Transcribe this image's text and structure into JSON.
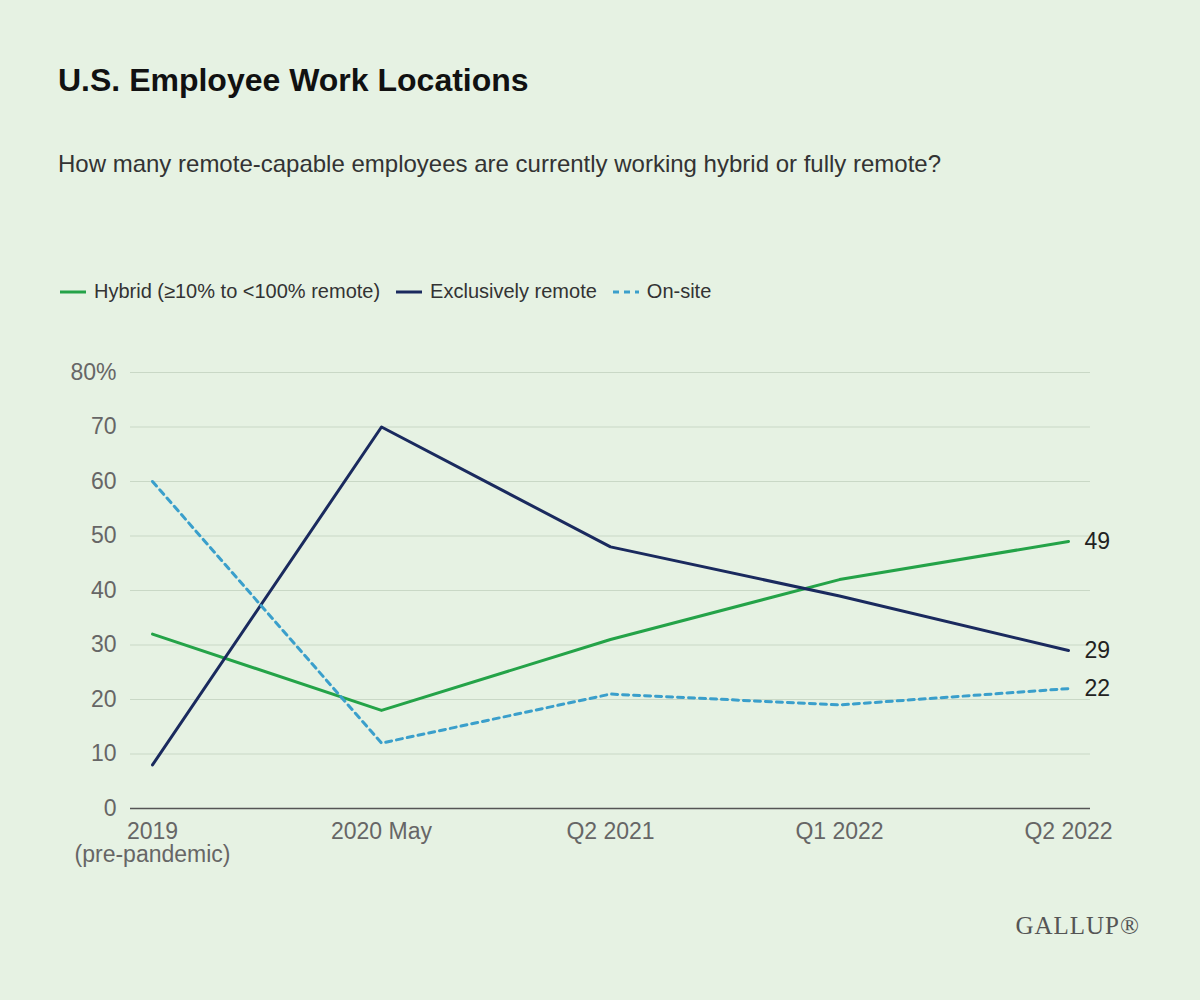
{
  "chart_data": {
    "type": "line",
    "title": "U.S. Employee Work Locations",
    "subtitle": "How many remote-capable employees are currently working hybrid or fully remote?",
    "source": "GALLUP®",
    "categories": [
      "2019\n(pre-pandemic)",
      "2020 May",
      "Q2 2021",
      "Q1 2022",
      "Q2 2022"
    ],
    "series": [
      {
        "name": "Hybrid (≥10% to <100% remote)",
        "color": "#24a348",
        "line_style": "solid",
        "values": [
          32,
          18,
          31,
          42,
          49
        ]
      },
      {
        "name": "Exclusively remote",
        "color": "#1a2a5e",
        "line_style": "solid",
        "values": [
          8,
          70,
          48,
          39,
          29
        ]
      },
      {
        "name": "On-site",
        "color": "#3a9fcb",
        "line_style": "dashed",
        "values": [
          60,
          12,
          21,
          19,
          22
        ]
      }
    ],
    "annotations": [
      {
        "x": "Q2 2022",
        "y": 49,
        "text": "49"
      },
      {
        "x": "Q2 2022",
        "y": 29,
        "text": "29"
      },
      {
        "x": "Q2 2022",
        "y": 22,
        "text": "22"
      }
    ],
    "ylim": [
      0,
      80
    ],
    "yticks": [
      0,
      10,
      20,
      30,
      40,
      50,
      60,
      70,
      {
        "value": 80,
        "label": "80%"
      }
    ],
    "grid": true,
    "legend": "top"
  }
}
